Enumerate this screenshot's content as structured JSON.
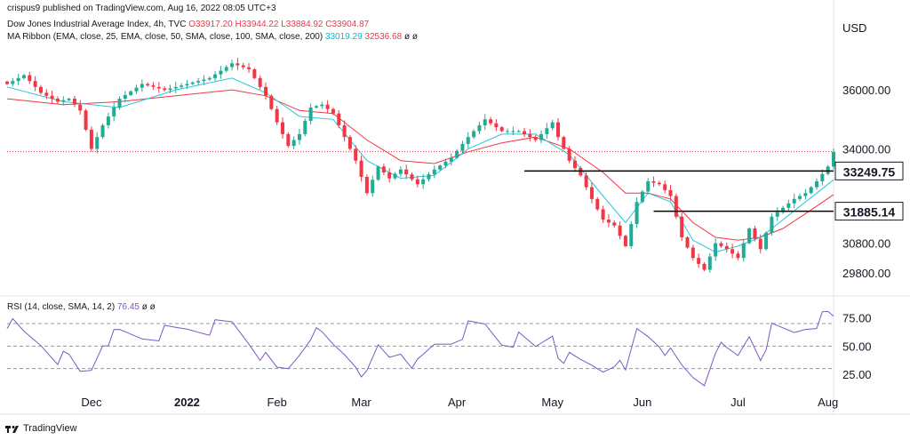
{
  "header": {
    "published": "crispus9 published on TradingView.com, Aug 16, 2022 08:05 UTC+3",
    "symbol": "Dow Jones Industrial Average Index, 4h, TVC",
    "ohlc": {
      "o": "O33917.20",
      "h": "H33944.22",
      "l": "L33884.92",
      "c": "C33904.87"
    },
    "ma_label": "MA Ribbon (EMA, close, 25, EMA, close, 50, SMA, close, 100, SMA, close, 200)",
    "ma_v1": "33019.29",
    "ma_v2": "32536.68",
    "ma_tail": "ø ø",
    "rsi_label": "RSI (14, close, SMA, 14, 2)",
    "rsi_value": "76.45",
    "rsi_tail": "ø ø"
  },
  "currency": "USD",
  "brand": "TradingView",
  "colors": {
    "up": "#22ab94",
    "down": "#f23645",
    "ema_fast": "#26c6da",
    "ema_slow": "#f23645",
    "rsi": "#7e57c2",
    "horiz": "#000000"
  },
  "chart_data": [
    {
      "type": "candlestick",
      "title": "Dow Jones Industrial Average Index, 4h, TVC",
      "x_labels": [
        "Dec",
        "2022",
        "Feb",
        "Mar",
        "Apr",
        "May",
        "Jun",
        "Jul",
        "Aug"
      ],
      "y_ticks": [
        29800,
        30800,
        34000,
        36000
      ],
      "ylim": [
        29100,
        37300
      ],
      "close_path": [
        [
          0,
          36200
        ],
        [
          3,
          36500
        ],
        [
          6,
          35900
        ],
        [
          9,
          35600
        ],
        [
          11,
          35700
        ],
        [
          13,
          35300
        ],
        [
          15,
          34000
        ],
        [
          17,
          34800
        ],
        [
          20,
          35700
        ],
        [
          24,
          36200
        ],
        [
          28,
          36000
        ],
        [
          32,
          36200
        ],
        [
          36,
          36400
        ],
        [
          40,
          36900
        ],
        [
          43,
          36700
        ],
        [
          46,
          35800
        ],
        [
          48,
          34900
        ],
        [
          50,
          34100
        ],
        [
          52,
          34500
        ],
        [
          54,
          35400
        ],
        [
          56,
          35500
        ],
        [
          58,
          35200
        ],
        [
          60,
          34400
        ],
        [
          62,
          33600
        ],
        [
          64,
          32500
        ],
        [
          66,
          33400
        ],
        [
          68,
          33000
        ],
        [
          70,
          33300
        ],
        [
          73,
          32800
        ],
        [
          76,
          33300
        ],
        [
          79,
          33700
        ],
        [
          82,
          34400
        ],
        [
          85,
          35000
        ],
        [
          88,
          34600
        ],
        [
          91,
          34600
        ],
        [
          94,
          34300
        ],
        [
          97,
          34900
        ],
        [
          98,
          34400
        ],
        [
          100,
          33600
        ],
        [
          102,
          33100
        ],
        [
          104,
          32300
        ],
        [
          106,
          31600
        ],
        [
          108,
          31400
        ],
        [
          110,
          30700
        ],
        [
          112,
          32200
        ],
        [
          114,
          32900
        ],
        [
          116,
          32800
        ],
        [
          118,
          32400
        ],
        [
          120,
          31000
        ],
        [
          122,
          30300
        ],
        [
          124,
          29900
        ],
        [
          126,
          30800
        ],
        [
          128,
          30600
        ],
        [
          130,
          30300
        ],
        [
          132,
          31300
        ],
        [
          134,
          30600
        ],
        [
          136,
          31700
        ],
        [
          138,
          32000
        ],
        [
          140,
          32300
        ],
        [
          142,
          32500
        ],
        [
          144,
          32900
        ],
        [
          146,
          33400
        ],
        [
          147,
          33900
        ]
      ],
      "ema_fast": [
        [
          0,
          36100
        ],
        [
          10,
          35600
        ],
        [
          20,
          35400
        ],
        [
          30,
          36000
        ],
        [
          40,
          36400
        ],
        [
          46,
          35900
        ],
        [
          52,
          35100
        ],
        [
          58,
          35000
        ],
        [
          64,
          33600
        ],
        [
          70,
          33000
        ],
        [
          76,
          33100
        ],
        [
          82,
          34000
        ],
        [
          88,
          34500
        ],
        [
          94,
          34500
        ],
        [
          100,
          33800
        ],
        [
          106,
          32400
        ],
        [
          110,
          31500
        ],
        [
          114,
          32500
        ],
        [
          118,
          32200
        ],
        [
          122,
          30900
        ],
        [
          126,
          30500
        ],
        [
          130,
          30700
        ],
        [
          134,
          31000
        ],
        [
          138,
          31600
        ],
        [
          142,
          32200
        ],
        [
          147,
          32950
        ]
      ],
      "ema_slow": [
        [
          0,
          35700
        ],
        [
          10,
          35500
        ],
        [
          20,
          35600
        ],
        [
          30,
          35800
        ],
        [
          40,
          36000
        ],
        [
          46,
          35800
        ],
        [
          52,
          35300
        ],
        [
          58,
          35200
        ],
        [
          64,
          34300
        ],
        [
          70,
          33600
        ],
        [
          76,
          33500
        ],
        [
          82,
          33900
        ],
        [
          88,
          34200
        ],
        [
          94,
          34400
        ],
        [
          100,
          34000
        ],
        [
          106,
          33200
        ],
        [
          110,
          32500
        ],
        [
          114,
          32500
        ],
        [
          118,
          32300
        ],
        [
          122,
          31500
        ],
        [
          126,
          31000
        ],
        [
          130,
          30900
        ],
        [
          134,
          31000
        ],
        [
          138,
          31300
        ],
        [
          142,
          31800
        ],
        [
          147,
          32450
        ]
      ],
      "levels": [
        {
          "label": "33249.75",
          "value": 33249.75,
          "from": 92
        },
        {
          "label": "31885.14",
          "value": 31885.14,
          "from": 115
        }
      ],
      "last_price": 33904.87
    },
    {
      "type": "line",
      "title": "RSI (14, close, SMA, 14, 2)",
      "y_ticks": [
        25,
        50,
        75
      ],
      "ylim": [
        10,
        85
      ],
      "bands": [
        30,
        50,
        70
      ],
      "values": [
        [
          0,
          72
        ],
        [
          3,
          60
        ],
        [
          6,
          52
        ],
        [
          9,
          40
        ],
        [
          11,
          38
        ],
        [
          13,
          26
        ],
        [
          15,
          30
        ],
        [
          17,
          55
        ],
        [
          20,
          60
        ],
        [
          24,
          58
        ],
        [
          28,
          62
        ],
        [
          32,
          65
        ],
        [
          36,
          66
        ],
        [
          40,
          70
        ],
        [
          43,
          55
        ],
        [
          46,
          38
        ],
        [
          48,
          28
        ],
        [
          50,
          30
        ],
        [
          52,
          45
        ],
        [
          54,
          62
        ],
        [
          56,
          58
        ],
        [
          58,
          50
        ],
        [
          60,
          44
        ],
        [
          62,
          36
        ],
        [
          64,
          22
        ],
        [
          66,
          48
        ],
        [
          68,
          40
        ],
        [
          70,
          46
        ],
        [
          73,
          32
        ],
        [
          76,
          50
        ],
        [
          79,
          55
        ],
        [
          82,
          66
        ],
        [
          85,
          68
        ],
        [
          88,
          54
        ],
        [
          91,
          56
        ],
        [
          94,
          48
        ],
        [
          97,
          62
        ],
        [
          98,
          44
        ],
        [
          100,
          38
        ],
        [
          102,
          35
        ],
        [
          104,
          33
        ],
        [
          106,
          30
        ],
        [
          108,
          38
        ],
        [
          110,
          24
        ],
        [
          112,
          64
        ],
        [
          114,
          60
        ],
        [
          116,
          54
        ],
        [
          118,
          42
        ],
        [
          120,
          30
        ],
        [
          122,
          22
        ],
        [
          124,
          18
        ],
        [
          126,
          50
        ],
        [
          128,
          44
        ],
        [
          130,
          40
        ],
        [
          132,
          60
        ],
        [
          134,
          42
        ],
        [
          136,
          64
        ],
        [
          138,
          63
        ],
        [
          140,
          62
        ],
        [
          142,
          68
        ],
        [
          144,
          72
        ],
        [
          146,
          76
        ],
        [
          147,
          76.45
        ]
      ]
    }
  ]
}
